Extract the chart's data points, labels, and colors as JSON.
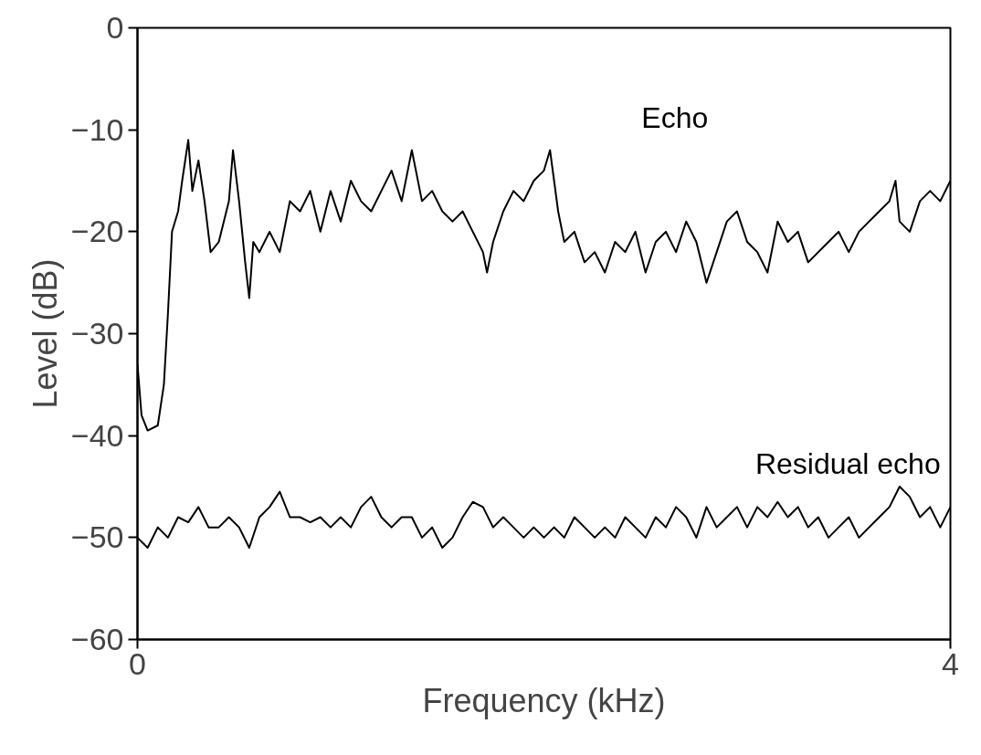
{
  "chart_data": {
    "type": "line",
    "xlabel": "Frequency (kHz)",
    "ylabel": "Level (dB)",
    "xlim": [
      0,
      4
    ],
    "ylim": [
      -60,
      0
    ],
    "xticks": [
      0,
      4
    ],
    "yticks": [
      -60,
      -50,
      -40,
      -30,
      -20,
      -10,
      0
    ],
    "grid": false,
    "legend": false,
    "series": [
      {
        "name": "Echo",
        "color": "#000000",
        "x": [
          0,
          0.02,
          0.05,
          0.1,
          0.13,
          0.15,
          0.17,
          0.2,
          0.22,
          0.25,
          0.27,
          0.3,
          0.33,
          0.36,
          0.4,
          0.45,
          0.47,
          0.5,
          0.53,
          0.55,
          0.57,
          0.6,
          0.65,
          0.7,
          0.75,
          0.8,
          0.85,
          0.9,
          0.95,
          1.0,
          1.05,
          1.1,
          1.15,
          1.2,
          1.25,
          1.3,
          1.35,
          1.4,
          1.45,
          1.5,
          1.55,
          1.6,
          1.65,
          1.7,
          1.72,
          1.75,
          1.8,
          1.85,
          1.9,
          1.95,
          2.0,
          2.03,
          2.07,
          2.1,
          2.15,
          2.2,
          2.25,
          2.3,
          2.35,
          2.4,
          2.45,
          2.5,
          2.55,
          2.6,
          2.65,
          2.7,
          2.75,
          2.8,
          2.85,
          2.9,
          2.95,
          3.0,
          3.05,
          3.1,
          3.15,
          3.2,
          3.25,
          3.3,
          3.35,
          3.4,
          3.45,
          3.5,
          3.55,
          3.6,
          3.65,
          3.7,
          3.73,
          3.75,
          3.8,
          3.85,
          3.9,
          3.95,
          4.0
        ],
        "values": [
          -33,
          -38,
          -39.5,
          -39,
          -35,
          -28,
          -20,
          -18,
          -15,
          -11,
          -16,
          -13,
          -17,
          -22,
          -21,
          -17,
          -12,
          -17,
          -23,
          -26.5,
          -21,
          -22,
          -20,
          -22,
          -17,
          -18,
          -16,
          -20,
          -16,
          -19,
          -15,
          -17,
          -18,
          -16,
          -14,
          -17,
          -12,
          -17,
          -16,
          -18,
          -19,
          -18,
          -20,
          -22,
          -24,
          -21,
          -18,
          -16,
          -17,
          -15,
          -14,
          -12,
          -18,
          -21,
          -20,
          -23,
          -22,
          -24,
          -21,
          -22,
          -20,
          -24,
          -21,
          -20,
          -22,
          -19,
          -21,
          -25,
          -22,
          -19,
          -18,
          -21,
          -22,
          -24,
          -19,
          -21,
          -20,
          -23,
          -22,
          -21,
          -20,
          -22,
          -20,
          -19,
          -18,
          -17,
          -15,
          -19,
          -20,
          -17,
          -16,
          -17,
          -15
        ]
      },
      {
        "name": "Residual echo",
        "color": "#000000",
        "x": [
          0,
          0.05,
          0.1,
          0.15,
          0.2,
          0.25,
          0.3,
          0.35,
          0.4,
          0.45,
          0.5,
          0.55,
          0.6,
          0.65,
          0.7,
          0.75,
          0.8,
          0.85,
          0.9,
          0.95,
          1.0,
          1.05,
          1.1,
          1.15,
          1.2,
          1.25,
          1.3,
          1.35,
          1.4,
          1.45,
          1.5,
          1.55,
          1.6,
          1.65,
          1.7,
          1.75,
          1.8,
          1.85,
          1.9,
          1.95,
          2.0,
          2.05,
          2.1,
          2.15,
          2.2,
          2.25,
          2.3,
          2.35,
          2.4,
          2.45,
          2.5,
          2.55,
          2.6,
          2.65,
          2.7,
          2.75,
          2.8,
          2.85,
          2.9,
          2.95,
          3.0,
          3.05,
          3.1,
          3.15,
          3.2,
          3.25,
          3.3,
          3.35,
          3.4,
          3.45,
          3.5,
          3.55,
          3.6,
          3.65,
          3.7,
          3.75,
          3.8,
          3.85,
          3.9,
          3.95,
          4.0
        ],
        "values": [
          -50,
          -51,
          -49,
          -50,
          -48,
          -48.5,
          -47,
          -49,
          -49,
          -48,
          -49,
          -51,
          -48,
          -47,
          -45.5,
          -48,
          -48,
          -48.5,
          -48,
          -49,
          -48,
          -49,
          -47,
          -46,
          -48,
          -49,
          -48,
          -48,
          -50,
          -49,
          -51,
          -50,
          -48,
          -46.5,
          -47,
          -49,
          -48,
          -49,
          -50,
          -49,
          -50,
          -49,
          -50,
          -48,
          -49,
          -50,
          -49,
          -50,
          -48,
          -49,
          -50,
          -48,
          -49,
          -47,
          -48,
          -50,
          -47,
          -49,
          -48,
          -47,
          -49,
          -47,
          -48,
          -46.5,
          -48,
          -47,
          -49,
          -48,
          -50,
          -49,
          -48,
          -50,
          -49,
          -48,
          -47,
          -45,
          -46,
          -48,
          -47,
          -49,
          -47
        ]
      }
    ]
  }
}
